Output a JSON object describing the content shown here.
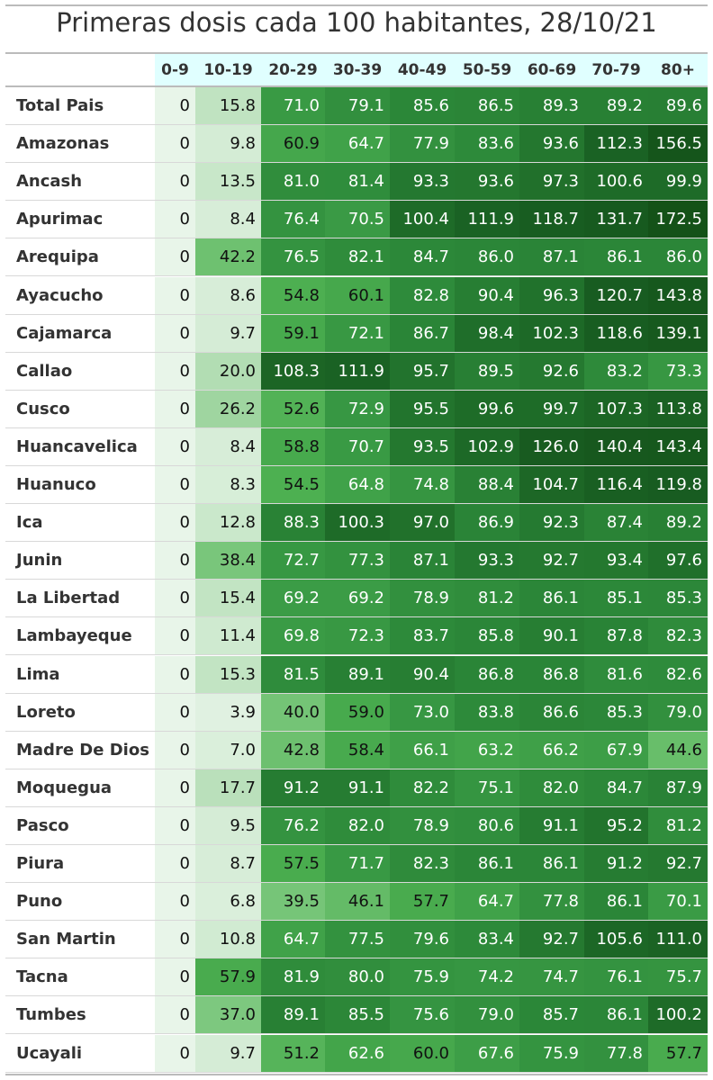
{
  "title": "Primeras dosis cada 100 habitantes, 28/10/21",
  "table": {
    "columns": [
      "0-9",
      "10-19",
      "20-29",
      "30-39",
      "40-49",
      "50-59",
      "60-69",
      "70-79",
      "80+"
    ],
    "rows": [
      {
        "label": "Total Pais",
        "cells": [
          "0",
          "15.8",
          "71.0",
          "79.1",
          "85.6",
          "86.5",
          "89.3",
          "89.2",
          "89.6"
        ]
      },
      {
        "label": "Amazonas",
        "cells": [
          "0",
          "9.8",
          "60.9",
          "64.7",
          "77.9",
          "83.6",
          "93.6",
          "112.3",
          "156.5"
        ]
      },
      {
        "label": "Ancash",
        "cells": [
          "0",
          "13.5",
          "81.0",
          "81.4",
          "93.3",
          "93.6",
          "97.3",
          "100.6",
          "99.9"
        ]
      },
      {
        "label": "Apurimac",
        "cells": [
          "0",
          "8.4",
          "76.4",
          "70.5",
          "100.4",
          "111.9",
          "118.7",
          "131.7",
          "172.5"
        ]
      },
      {
        "label": "Arequipa",
        "cells": [
          "0",
          "42.2",
          "76.5",
          "82.1",
          "84.7",
          "86.0",
          "87.1",
          "86.1",
          "86.0"
        ]
      },
      {
        "label": "Ayacucho",
        "cells": [
          "0",
          "8.6",
          "54.8",
          "60.1",
          "82.8",
          "90.4",
          "96.3",
          "120.7",
          "143.8"
        ]
      },
      {
        "label": "Cajamarca",
        "cells": [
          "0",
          "9.7",
          "59.1",
          "72.1",
          "86.7",
          "98.4",
          "102.3",
          "118.6",
          "139.1"
        ]
      },
      {
        "label": "Callao",
        "cells": [
          "0",
          "20.0",
          "108.3",
          "111.9",
          "95.7",
          "89.5",
          "92.6",
          "83.2",
          "73.3"
        ]
      },
      {
        "label": "Cusco",
        "cells": [
          "0",
          "26.2",
          "52.6",
          "72.9",
          "95.5",
          "99.6",
          "99.7",
          "107.3",
          "113.8"
        ]
      },
      {
        "label": "Huancavelica",
        "cells": [
          "0",
          "8.4",
          "58.8",
          "70.7",
          "93.5",
          "102.9",
          "126.0",
          "140.4",
          "143.4"
        ]
      },
      {
        "label": "Huanuco",
        "cells": [
          "0",
          "8.3",
          "54.5",
          "64.8",
          "74.8",
          "88.4",
          "104.7",
          "116.4",
          "119.8"
        ]
      },
      {
        "label": "Ica",
        "cells": [
          "0",
          "12.8",
          "88.3",
          "100.3",
          "97.0",
          "86.9",
          "92.3",
          "87.4",
          "89.2"
        ]
      },
      {
        "label": "Junin",
        "cells": [
          "0",
          "38.4",
          "72.7",
          "77.3",
          "87.1",
          "93.3",
          "92.7",
          "93.4",
          "97.6"
        ]
      },
      {
        "label": "La Libertad",
        "cells": [
          "0",
          "15.4",
          "69.2",
          "69.2",
          "78.9",
          "81.2",
          "86.1",
          "85.1",
          "85.3"
        ]
      },
      {
        "label": "Lambayeque",
        "cells": [
          "0",
          "11.4",
          "69.8",
          "72.3",
          "83.7",
          "85.8",
          "90.1",
          "87.8",
          "82.3"
        ]
      },
      {
        "label": "Lima",
        "cells": [
          "0",
          "15.3",
          "81.5",
          "89.1",
          "90.4",
          "86.8",
          "86.8",
          "81.6",
          "82.6"
        ]
      },
      {
        "label": "Loreto",
        "cells": [
          "0",
          "3.9",
          "40.0",
          "59.0",
          "73.0",
          "83.8",
          "86.6",
          "85.3",
          "79.0"
        ]
      },
      {
        "label": "Madre De Dios",
        "cells": [
          "0",
          "7.0",
          "42.8",
          "58.4",
          "66.1",
          "63.2",
          "66.2",
          "67.9",
          "44.6"
        ]
      },
      {
        "label": "Moquegua",
        "cells": [
          "0",
          "17.7",
          "91.2",
          "91.1",
          "82.2",
          "75.1",
          "82.0",
          "84.7",
          "87.9"
        ]
      },
      {
        "label": "Pasco",
        "cells": [
          "0",
          "9.5",
          "76.2",
          "82.0",
          "78.9",
          "80.6",
          "91.1",
          "95.2",
          "81.2"
        ]
      },
      {
        "label": "Piura",
        "cells": [
          "0",
          "8.7",
          "57.5",
          "71.7",
          "82.3",
          "86.1",
          "86.1",
          "91.2",
          "92.7"
        ]
      },
      {
        "label": "Puno",
        "cells": [
          "0",
          "6.8",
          "39.5",
          "46.1",
          "57.7",
          "64.7",
          "77.8",
          "86.1",
          "70.1"
        ]
      },
      {
        "label": "San Martin",
        "cells": [
          "0",
          "10.8",
          "64.7",
          "77.5",
          "79.6",
          "83.4",
          "92.7",
          "105.6",
          "111.0"
        ]
      },
      {
        "label": "Tacna",
        "cells": [
          "0",
          "57.9",
          "81.9",
          "80.0",
          "75.9",
          "74.2",
          "74.7",
          "76.1",
          "75.7"
        ]
      },
      {
        "label": "Tumbes",
        "cells": [
          "0",
          "37.0",
          "89.1",
          "85.5",
          "75.6",
          "79.0",
          "85.7",
          "86.1",
          "100.2"
        ]
      },
      {
        "label": "Ucayali",
        "cells": [
          "0",
          "9.7",
          "51.2",
          "62.6",
          "60.0",
          "67.6",
          "75.9",
          "77.8",
          "57.7"
        ]
      }
    ]
  }
}
